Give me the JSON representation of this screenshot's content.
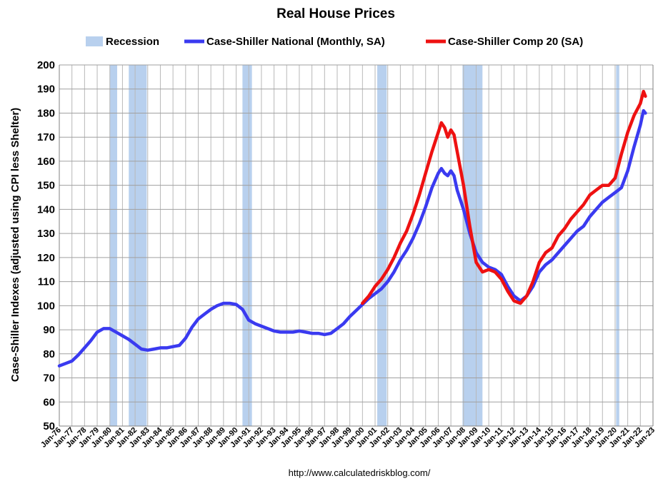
{
  "chart_data": {
    "type": "line",
    "title": "Real House Prices",
    "xlabel": "",
    "ylabel": "Case-Shiller Indexes (adjusted using CPI less Shelter)",
    "ylim": [
      50,
      200
    ],
    "yticks": [
      50,
      60,
      70,
      80,
      90,
      100,
      110,
      120,
      130,
      140,
      150,
      160,
      170,
      180,
      190,
      200
    ],
    "xlim": [
      1976.0,
      2023.0
    ],
    "xticks": [
      "Jan-76",
      "Jan-77",
      "Jan-78",
      "Jan-79",
      "Jan-80",
      "Jan-81",
      "Jan-82",
      "Jan-83",
      "Jan-84",
      "Jan-85",
      "Jan-86",
      "Jan-87",
      "Jan-88",
      "Jan-89",
      "Jan-90",
      "Jan-91",
      "Jan-92",
      "Jan-93",
      "Jan-94",
      "Jan-95",
      "Jan-96",
      "Jan-97",
      "Jan-98",
      "Jan-99",
      "Jan-00",
      "Jan-01",
      "Jan-02",
      "Jan-03",
      "Jan-04",
      "Jan-05",
      "Jan-06",
      "Jan-07",
      "Jan-08",
      "Jan-09",
      "Jan-10",
      "Jan-11",
      "Jan-12",
      "Jan-13",
      "Jan-14",
      "Jan-15",
      "Jan-16",
      "Jan-17",
      "Jan-18",
      "Jan-19",
      "Jan-20",
      "Jan-21",
      "Jan-22",
      "Jan-23"
    ],
    "grid": true,
    "legend_placement": "top",
    "source_note": "http://www.calculatedriskblog.com/",
    "recessions": {
      "name": "Recession",
      "color": "#b8d0ee",
      "periods": [
        [
          1980.0,
          1980.58
        ],
        [
          1981.5,
          1982.92
        ],
        [
          1990.5,
          1991.25
        ],
        [
          2001.17,
          2001.92
        ],
        [
          2007.92,
          2009.5
        ],
        [
          2020.08,
          2020.33
        ]
      ]
    },
    "series": [
      {
        "name": "Case-Shiller National (Monthly, SA)",
        "color": "#3a3af0",
        "x": [
          1976.0,
          1976.5,
          1977.0,
          1977.5,
          1978.0,
          1978.5,
          1979.0,
          1979.5,
          1980.0,
          1980.5,
          1981.0,
          1981.5,
          1982.0,
          1982.5,
          1983.0,
          1983.5,
          1984.0,
          1984.5,
          1985.0,
          1985.5,
          1986.0,
          1986.5,
          1987.0,
          1987.5,
          1988.0,
          1988.5,
          1989.0,
          1989.5,
          1990.0,
          1990.5,
          1991.0,
          1991.5,
          1992.0,
          1992.5,
          1993.0,
          1993.5,
          1994.0,
          1994.5,
          1995.0,
          1995.5,
          1996.0,
          1996.5,
          1997.0,
          1997.5,
          1998.0,
          1998.5,
          1999.0,
          1999.5,
          2000.0,
          2000.5,
          2001.0,
          2001.5,
          2002.0,
          2002.5,
          2003.0,
          2003.5,
          2004.0,
          2004.5,
          2005.0,
          2005.5,
          2006.0,
          2006.25,
          2006.5,
          2006.75,
          2007.0,
          2007.25,
          2007.5,
          2008.0,
          2008.5,
          2009.0,
          2009.5,
          2010.0,
          2010.5,
          2011.0,
          2011.5,
          2012.0,
          2012.5,
          2013.0,
          2013.5,
          2014.0,
          2014.5,
          2015.0,
          2015.5,
          2016.0,
          2016.5,
          2017.0,
          2017.5,
          2018.0,
          2018.5,
          2019.0,
          2019.5,
          2020.0,
          2020.5,
          2021.0,
          2021.5,
          2022.0,
          2022.25,
          2022.4
        ],
        "values": [
          75,
          76,
          77,
          79.5,
          82.5,
          85.5,
          89,
          90.5,
          90.5,
          89,
          87.5,
          86,
          84,
          82,
          81.5,
          82,
          82.5,
          82.5,
          83,
          83.5,
          86.5,
          91,
          94.5,
          96.5,
          98.5,
          100,
          101,
          101,
          100.5,
          98.5,
          94,
          92.5,
          91.5,
          90.5,
          89.5,
          89,
          89,
          89,
          89.5,
          89,
          88.5,
          88.5,
          88,
          88.5,
          90.5,
          92.5,
          95.5,
          98,
          100.5,
          103,
          105,
          107,
          110,
          114,
          119,
          123,
          128,
          134,
          141,
          149,
          155,
          157,
          155,
          154,
          156,
          154,
          148,
          140,
          130,
          122,
          118,
          116,
          115,
          113,
          108,
          104,
          102,
          104,
          108,
          114,
          117,
          119,
          122,
          125,
          128,
          131,
          133,
          137,
          140,
          143,
          145,
          147,
          149,
          156,
          166,
          175,
          181,
          180
        ]
      },
      {
        "name": "Case-Shiller Comp 20  (SA)",
        "color": "#ee1111",
        "x": [
          2000.0,
          2000.5,
          2001.0,
          2001.5,
          2002.0,
          2002.5,
          2003.0,
          2003.5,
          2004.0,
          2004.5,
          2005.0,
          2005.5,
          2006.0,
          2006.25,
          2006.5,
          2006.75,
          2007.0,
          2007.25,
          2007.5,
          2008.0,
          2008.5,
          2009.0,
          2009.5,
          2010.0,
          2010.5,
          2011.0,
          2011.5,
          2012.0,
          2012.5,
          2013.0,
          2013.5,
          2014.0,
          2014.5,
          2015.0,
          2015.5,
          2016.0,
          2016.5,
          2017.0,
          2017.5,
          2018.0,
          2018.5,
          2019.0,
          2019.5,
          2020.0,
          2020.5,
          2021.0,
          2021.5,
          2022.0,
          2022.25,
          2022.4
        ],
        "values": [
          101,
          104,
          108,
          111,
          115,
          120,
          126,
          131,
          138,
          146,
          155,
          164,
          172,
          176,
          174,
          170,
          173,
          171,
          164,
          150,
          133,
          118,
          114,
          115,
          114,
          111,
          106,
          102,
          101,
          104,
          110,
          118,
          122,
          124,
          129,
          132,
          136,
          139,
          142,
          146,
          148,
          150,
          150,
          153,
          163,
          172,
          179,
          184,
          189,
          187
        ]
      }
    ]
  }
}
